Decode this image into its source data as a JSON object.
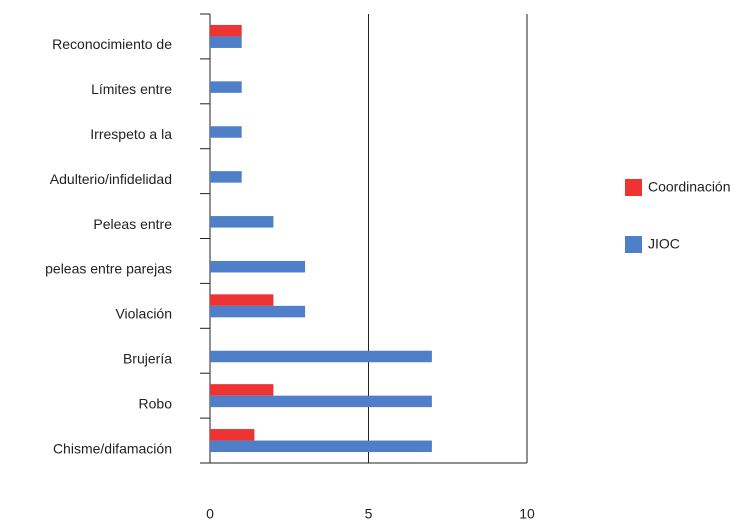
{
  "chart_data": {
    "type": "hbar",
    "categories": [
      "Reconocimiento de",
      "Límites entre",
      "Irrespeto a la",
      "Adulterio/infidelidad",
      "Peleas entre",
      "peleas entre parejas",
      "Violación",
      "Brujería",
      "Robo",
      "Chisme/difamación"
    ],
    "series": [
      {
        "name": "Coordinación",
        "color": "#ee3333",
        "values": [
          1,
          null,
          null,
          null,
          null,
          null,
          2,
          null,
          2,
          1.4
        ]
      },
      {
        "name": "JIOC",
        "color": "#4f7fc8",
        "values": [
          1,
          1,
          1,
          1,
          2,
          3,
          3,
          7,
          7,
          7
        ]
      }
    ],
    "xlim": [
      0,
      10
    ],
    "xticks": [
      0,
      5,
      10
    ],
    "grid": true,
    "legend": "right"
  }
}
